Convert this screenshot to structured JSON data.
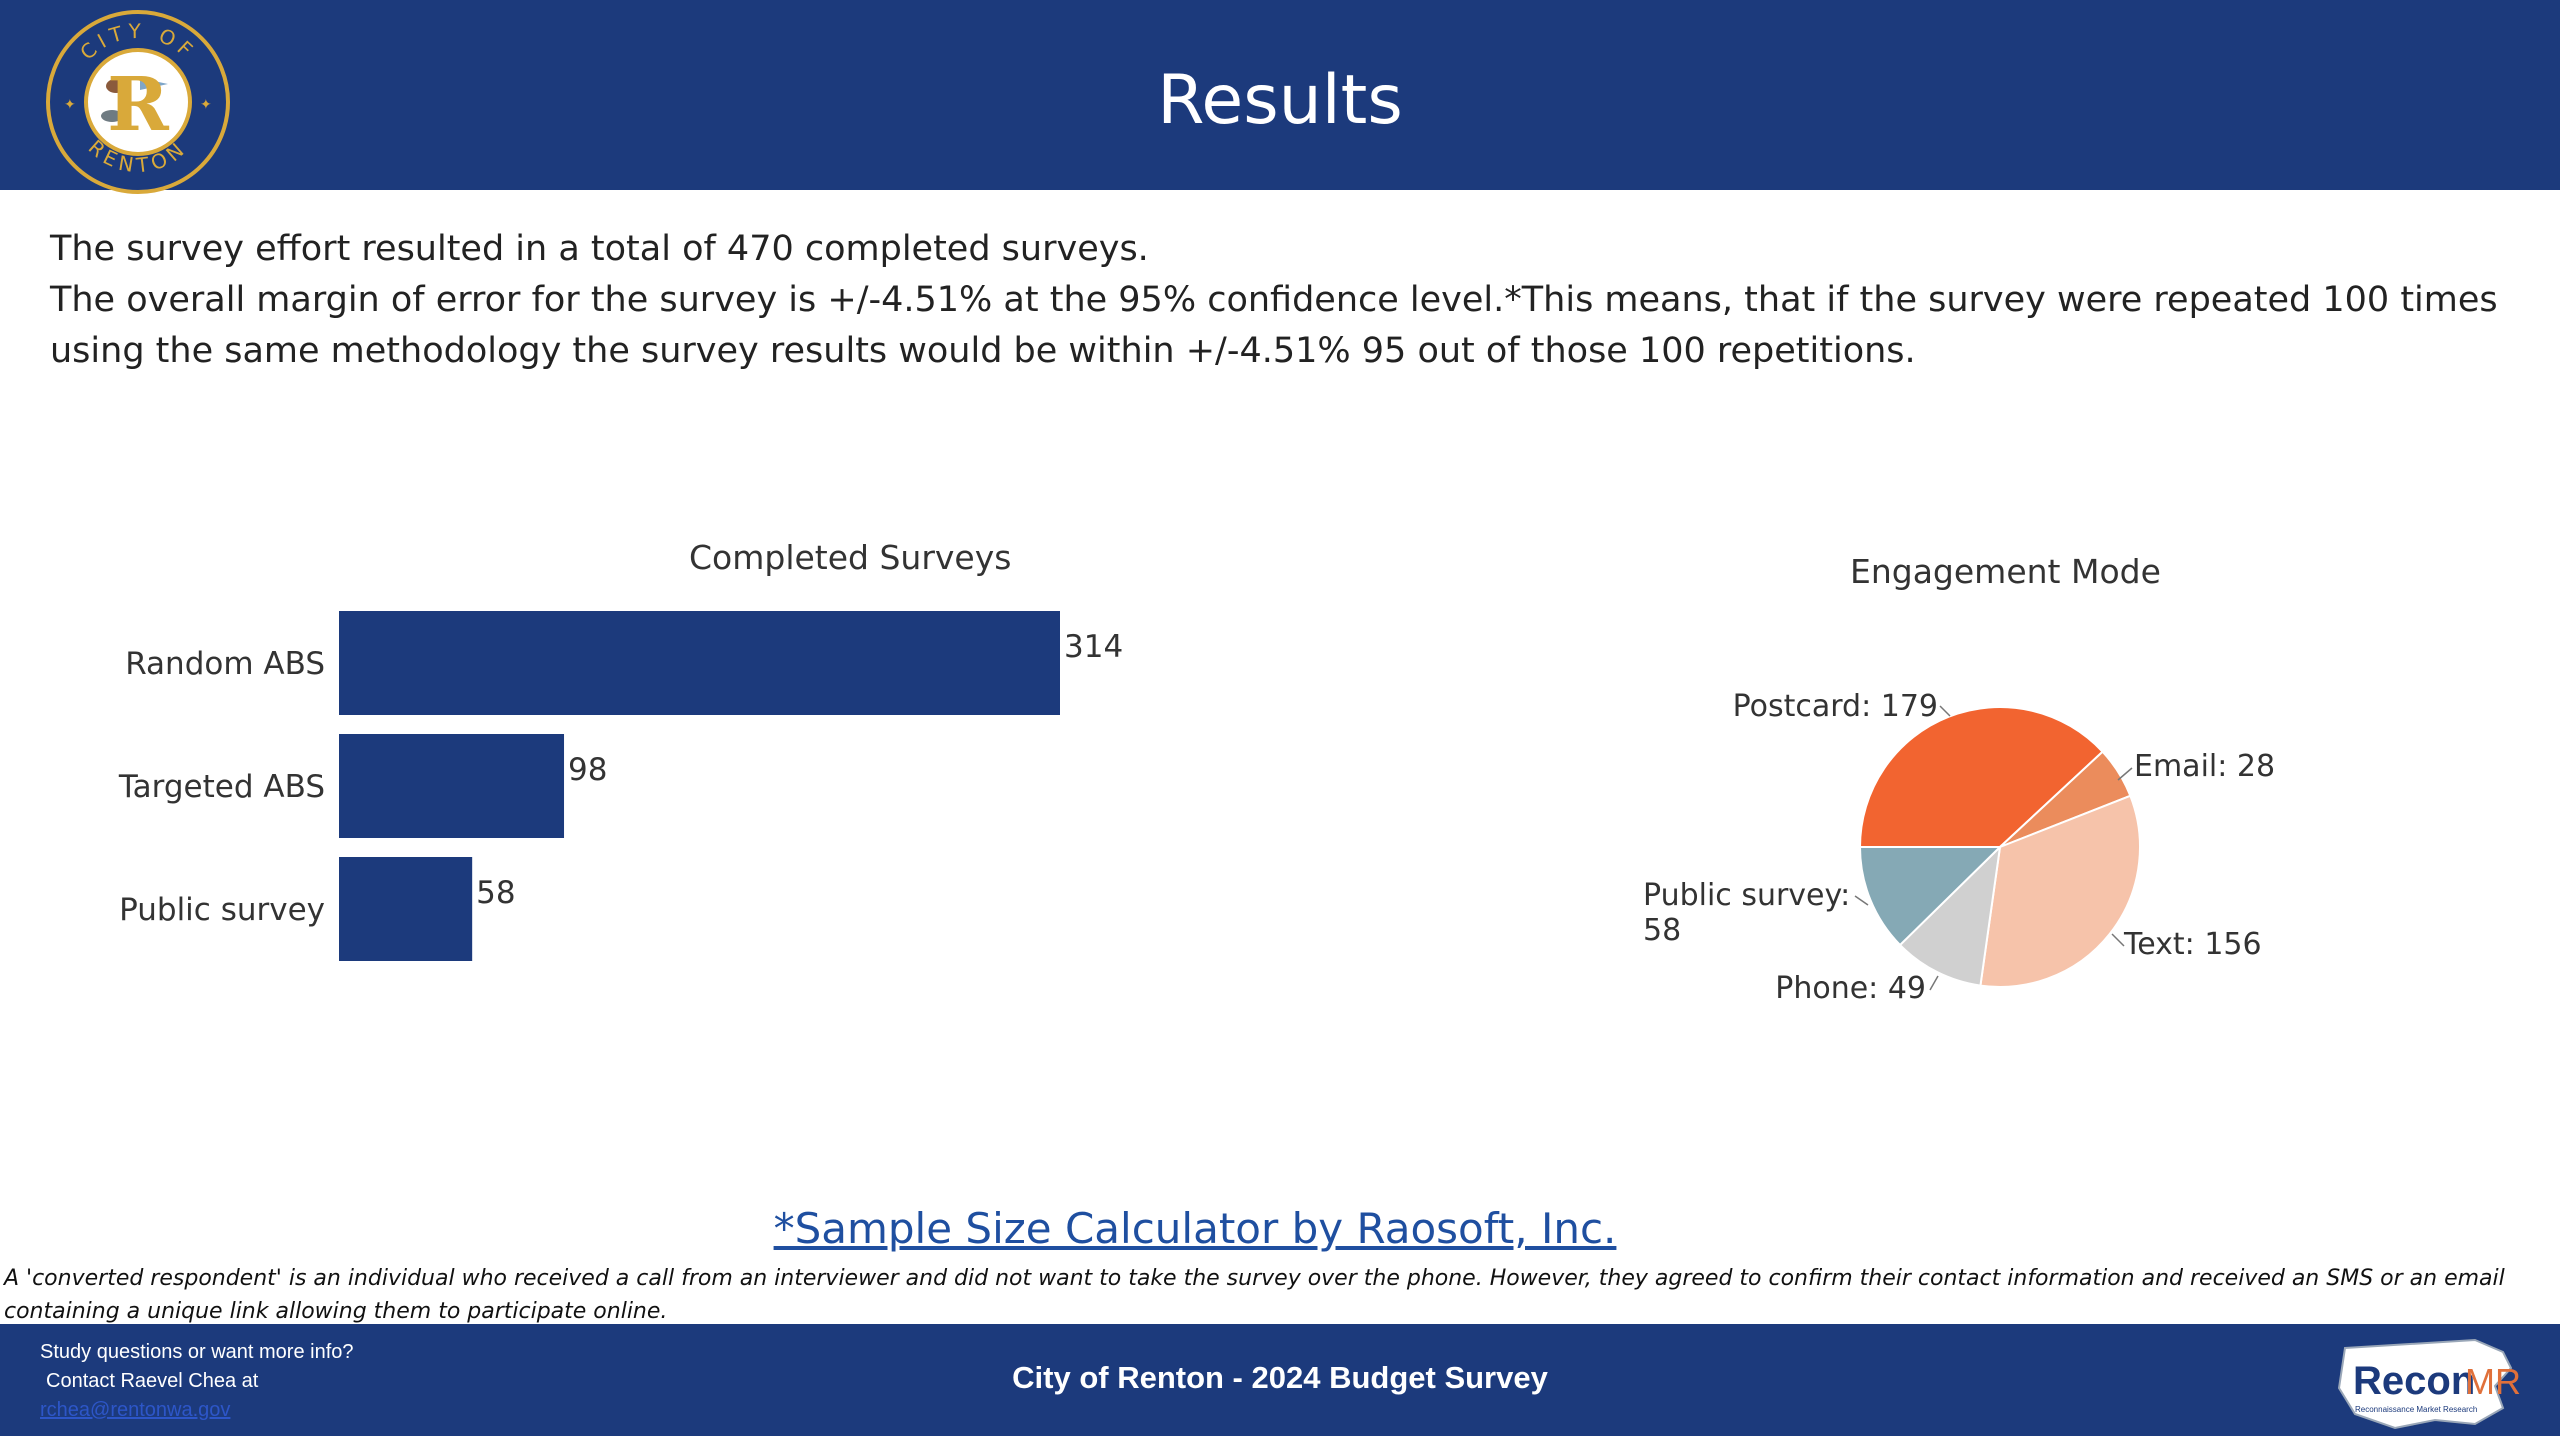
{
  "header": {
    "title": "Results",
    "logo_text_top": "CITY OF",
    "logo_text_bottom": "RENTON",
    "logo_letter": "R"
  },
  "intro": {
    "line1": "The survey effort resulted in a total of 470 completed surveys.",
    "line2": "The overall margin of error for the survey is +/-4.51% at the 95% confidence level.*This means, that if the survey were repeated 100 times using the same methodology the survey results would be within +/-4.51% 95 out of those 100 repetitions."
  },
  "chart_data": [
    {
      "type": "bar",
      "orientation": "horizontal",
      "title": "Completed Surveys",
      "categories": [
        "Random ABS",
        "Targeted ABS",
        "Public survey"
      ],
      "values": [
        314,
        98,
        58
      ],
      "value_labels": [
        "314",
        "98",
        "58"
      ],
      "color": "#1c3a7c",
      "xlim": [
        0,
        314
      ]
    },
    {
      "type": "pie",
      "title": "Engagement Mode",
      "slices": [
        {
          "label": "Postcard: 179",
          "value": 179,
          "color": "#f26430"
        },
        {
          "label": "Email: 28",
          "value": 28,
          "color": "#eb8c5c"
        },
        {
          "label": "Text: 156",
          "value": 156,
          "color": "#f6c3aa"
        },
        {
          "label": "Phone: 49",
          "value": 49,
          "color": "#d0d0d0"
        },
        {
          "label_lines": [
            "Public survey:",
            "58"
          ],
          "value": 58,
          "color": "#85a9b5"
        }
      ]
    }
  ],
  "link": {
    "text": "*Sample Size Calculator by Raosoft, Inc."
  },
  "footnote": {
    "text": "A 'converted respondent' is an individual who received a call from an interviewer and did not want to take the survey over the phone. However, they agreed to confirm their contact information and received an SMS or an email containing a unique link allowing them to participate online."
  },
  "footer": {
    "contact_line1": "Study questions or want more info?",
    "contact_line2": "Contact Raevel Chea at",
    "contact_email": "rchea@rentonwa.gov",
    "title": "City of Renton - 2024 Budget Survey",
    "brand_name_1": "Recon",
    "brand_name_2": "MR",
    "brand_tagline": "Reconnaissance Market Research"
  }
}
